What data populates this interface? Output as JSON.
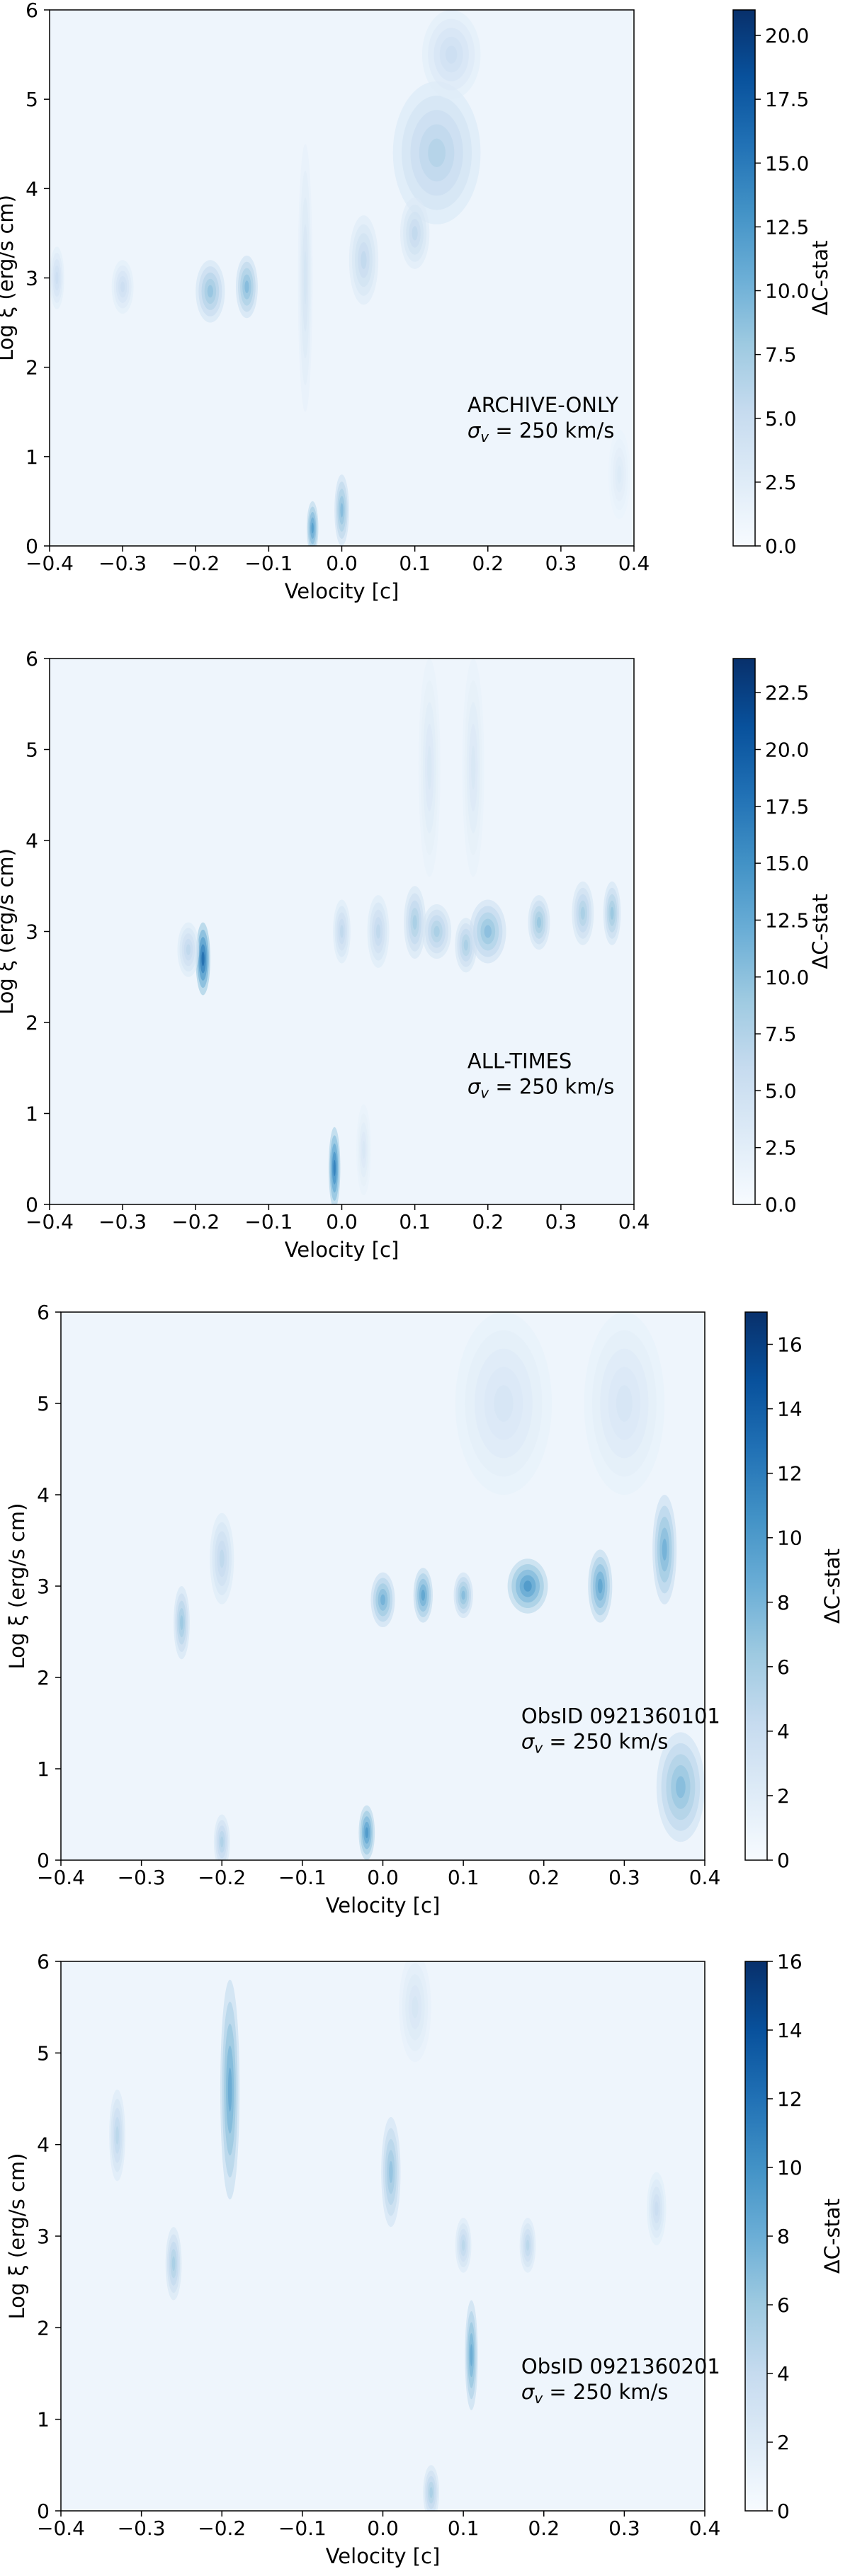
{
  "chart_data": [
    {
      "type": "heatmap",
      "xlabel": "Velocity [c]",
      "ylabel": "Log ξ (erg/s cm)",
      "xlim": [
        -0.4,
        0.4
      ],
      "ylim": [
        0,
        6
      ],
      "xticks": [
        "−0.4",
        "−0.3",
        "−0.2",
        "−0.1",
        "0.0",
        "0.1",
        "0.2",
        "0.3",
        "0.4"
      ],
      "yticks": [
        "0",
        "1",
        "2",
        "3",
        "4",
        "5",
        "6"
      ],
      "colorbar": {
        "label": "ΔC-stat",
        "min": 0,
        "max": 21,
        "ticks": [
          "0.0",
          "2.5",
          "5.0",
          "7.5",
          "10.0",
          "12.5",
          "15.0",
          "17.5",
          "20.0"
        ]
      },
      "annotation": {
        "label": "ARCHIVE-ONLY",
        "sigma_symbol": "σ",
        "sigma_sub": "v",
        "sigma_value": " = 250 km/s"
      },
      "features": [
        {
          "v": -0.39,
          "lx": 3.0,
          "dv": 0.01,
          "dlx": 0.35,
          "z": 5
        },
        {
          "v": -0.3,
          "lx": 2.9,
          "dv": 0.015,
          "dlx": 0.3,
          "z": 5
        },
        {
          "v": -0.18,
          "lx": 2.85,
          "dv": 0.02,
          "dlx": 0.35,
          "z": 9
        },
        {
          "v": -0.13,
          "lx": 2.9,
          "dv": 0.015,
          "dlx": 0.35,
          "z": 10
        },
        {
          "v": -0.05,
          "lx": 3.0,
          "dv": 0.01,
          "dlx": 1.5,
          "z": 4
        },
        {
          "v": -0.04,
          "lx": 0.2,
          "dv": 0.008,
          "dlx": 0.3,
          "z": 13
        },
        {
          "v": 0.0,
          "lx": 0.4,
          "dv": 0.01,
          "dlx": 0.4,
          "z": 10
        },
        {
          "v": 0.03,
          "lx": 3.2,
          "dv": 0.02,
          "dlx": 0.5,
          "z": 6
        },
        {
          "v": 0.13,
          "lx": 4.4,
          "dv": 0.06,
          "dlx": 0.8,
          "z": 7
        },
        {
          "v": 0.15,
          "lx": 5.5,
          "dv": 0.04,
          "dlx": 0.5,
          "z": 5
        },
        {
          "v": 0.1,
          "lx": 3.5,
          "dv": 0.02,
          "dlx": 0.4,
          "z": 6
        },
        {
          "v": 0.38,
          "lx": 0.8,
          "dv": 0.015,
          "dlx": 0.5,
          "z": 3
        }
      ]
    },
    {
      "type": "heatmap",
      "xlabel": "Velocity [c]",
      "ylabel": "Log ξ (erg/s cm)",
      "xlim": [
        -0.4,
        0.4
      ],
      "ylim": [
        0,
        6
      ],
      "xticks": [
        "−0.4",
        "−0.3",
        "−0.2",
        "−0.1",
        "0.0",
        "0.1",
        "0.2",
        "0.3",
        "0.4"
      ],
      "yticks": [
        "0",
        "1",
        "2",
        "3",
        "4",
        "5",
        "6"
      ],
      "colorbar": {
        "label": "ΔC-stat",
        "min": 0,
        "max": 24,
        "ticks": [
          "0.0",
          "2.5",
          "5.0",
          "7.5",
          "10.0",
          "12.5",
          "15.0",
          "17.5",
          "20.0",
          "22.5"
        ]
      },
      "annotation": {
        "label": "ALL-TIMES",
        "sigma_symbol": "σ",
        "sigma_sub": "v",
        "sigma_value": " = 250 km/s"
      },
      "features": [
        {
          "v": -0.19,
          "lx": 2.7,
          "dv": 0.01,
          "dlx": 0.4,
          "z": 20
        },
        {
          "v": -0.21,
          "lx": 2.8,
          "dv": 0.015,
          "dlx": 0.3,
          "z": 7
        },
        {
          "v": -0.01,
          "lx": 0.4,
          "dv": 0.008,
          "dlx": 0.45,
          "z": 18
        },
        {
          "v": 0.0,
          "lx": 3.0,
          "dv": 0.012,
          "dlx": 0.35,
          "z": 7
        },
        {
          "v": 0.05,
          "lx": 3.0,
          "dv": 0.015,
          "dlx": 0.4,
          "z": 7
        },
        {
          "v": 0.1,
          "lx": 3.1,
          "dv": 0.015,
          "dlx": 0.4,
          "z": 9
        },
        {
          "v": 0.13,
          "lx": 3.0,
          "dv": 0.02,
          "dlx": 0.3,
          "z": 9
        },
        {
          "v": 0.17,
          "lx": 2.85,
          "dv": 0.015,
          "dlx": 0.3,
          "z": 9
        },
        {
          "v": 0.2,
          "lx": 3.0,
          "dv": 0.025,
          "dlx": 0.35,
          "z": 11
        },
        {
          "v": 0.27,
          "lx": 3.1,
          "dv": 0.015,
          "dlx": 0.3,
          "z": 10
        },
        {
          "v": 0.33,
          "lx": 3.2,
          "dv": 0.015,
          "dlx": 0.35,
          "z": 9
        },
        {
          "v": 0.37,
          "lx": 3.2,
          "dv": 0.012,
          "dlx": 0.35,
          "z": 10
        },
        {
          "v": 0.12,
          "lx": 4.8,
          "dv": 0.015,
          "dlx": 1.2,
          "z": 4
        },
        {
          "v": 0.18,
          "lx": 4.8,
          "dv": 0.015,
          "dlx": 1.2,
          "z": 4
        },
        {
          "v": 0.03,
          "lx": 0.6,
          "dv": 0.01,
          "dlx": 0.5,
          "z": 4
        }
      ]
    },
    {
      "type": "heatmap",
      "xlabel": "Velocity [c]",
      "ylabel": "Log ξ (erg/s cm)",
      "xlim": [
        -0.4,
        0.4
      ],
      "ylim": [
        0,
        6
      ],
      "xticks": [
        "−0.4",
        "−0.3",
        "−0.2",
        "−0.1",
        "0.0",
        "0.1",
        "0.2",
        "0.3",
        "0.4"
      ],
      "yticks": [
        "0",
        "1",
        "2",
        "3",
        "4",
        "5",
        "6"
      ],
      "colorbar": {
        "label": "ΔC-stat",
        "min": 0,
        "max": 17,
        "ticks": [
          "0",
          "2",
          "4",
          "6",
          "8",
          "10",
          "12",
          "14",
          "16"
        ]
      },
      "annotation": {
        "label": "ObsID 0921360101",
        "sigma_symbol": "σ",
        "sigma_sub": "v",
        "sigma_value": " = 250 km/s"
      },
      "features": [
        {
          "v": -0.25,
          "lx": 2.6,
          "dv": 0.01,
          "dlx": 0.4,
          "z": 7
        },
        {
          "v": -0.2,
          "lx": 3.3,
          "dv": 0.015,
          "dlx": 0.5,
          "z": 5
        },
        {
          "v": -0.02,
          "lx": 0.3,
          "dv": 0.01,
          "dlx": 0.3,
          "z": 11
        },
        {
          "v": 0.0,
          "lx": 2.85,
          "dv": 0.015,
          "dlx": 0.3,
          "z": 9
        },
        {
          "v": 0.05,
          "lx": 2.9,
          "dv": 0.012,
          "dlx": 0.3,
          "z": 10
        },
        {
          "v": 0.1,
          "lx": 2.9,
          "dv": 0.012,
          "dlx": 0.25,
          "z": 8
        },
        {
          "v": 0.18,
          "lx": 3.0,
          "dv": 0.025,
          "dlx": 0.3,
          "z": 11
        },
        {
          "v": 0.27,
          "lx": 3.0,
          "dv": 0.015,
          "dlx": 0.4,
          "z": 10
        },
        {
          "v": 0.35,
          "lx": 3.4,
          "dv": 0.015,
          "dlx": 0.6,
          "z": 9
        },
        {
          "v": 0.37,
          "lx": 0.8,
          "dv": 0.03,
          "dlx": 0.6,
          "z": 8
        },
        {
          "v": 0.15,
          "lx": 5.0,
          "dv": 0.06,
          "dlx": 1.0,
          "z": 3
        },
        {
          "v": 0.3,
          "lx": 5.0,
          "dv": 0.05,
          "dlx": 1.0,
          "z": 3
        },
        {
          "v": -0.2,
          "lx": 0.2,
          "dv": 0.01,
          "dlx": 0.3,
          "z": 6
        }
      ]
    },
    {
      "type": "heatmap",
      "xlabel": "Velocity [c]",
      "ylabel": "Log ξ (erg/s cm)",
      "xlim": [
        -0.4,
        0.4
      ],
      "ylim": [
        0,
        6
      ],
      "xticks": [
        "−0.4",
        "−0.3",
        "−0.2",
        "−0.1",
        "0.0",
        "0.1",
        "0.2",
        "0.3",
        "0.4"
      ],
      "yticks": [
        "0",
        "1",
        "2",
        "3",
        "4",
        "5",
        "6"
      ],
      "colorbar": {
        "label": "ΔC-stat",
        "min": 0,
        "max": 16,
        "ticks": [
          "0",
          "2",
          "4",
          "6",
          "8",
          "10",
          "12",
          "14",
          "16"
        ]
      },
      "annotation": {
        "label": "ObsID 0921360201",
        "sigma_symbol": "σ",
        "sigma_sub": "v",
        "sigma_value": " = 250 km/s"
      },
      "features": [
        {
          "v": -0.19,
          "lx": 4.6,
          "dv": 0.012,
          "dlx": 1.2,
          "z": 9
        },
        {
          "v": -0.33,
          "lx": 4.1,
          "dv": 0.01,
          "dlx": 0.5,
          "z": 5
        },
        {
          "v": -0.26,
          "lx": 2.7,
          "dv": 0.01,
          "dlx": 0.4,
          "z": 6
        },
        {
          "v": 0.01,
          "lx": 3.7,
          "dv": 0.012,
          "dlx": 0.6,
          "z": 7
        },
        {
          "v": 0.11,
          "lx": 1.7,
          "dv": 0.008,
          "dlx": 0.6,
          "z": 9
        },
        {
          "v": 0.1,
          "lx": 2.9,
          "dv": 0.01,
          "dlx": 0.3,
          "z": 5
        },
        {
          "v": 0.18,
          "lx": 2.9,
          "dv": 0.01,
          "dlx": 0.3,
          "z": 5
        },
        {
          "v": 0.06,
          "lx": 0.2,
          "dv": 0.01,
          "dlx": 0.3,
          "z": 6
        },
        {
          "v": 0.34,
          "lx": 3.3,
          "dv": 0.012,
          "dlx": 0.4,
          "z": 4
        },
        {
          "v": 0.04,
          "lx": 5.5,
          "dv": 0.02,
          "dlx": 0.6,
          "z": 3
        }
      ]
    }
  ]
}
